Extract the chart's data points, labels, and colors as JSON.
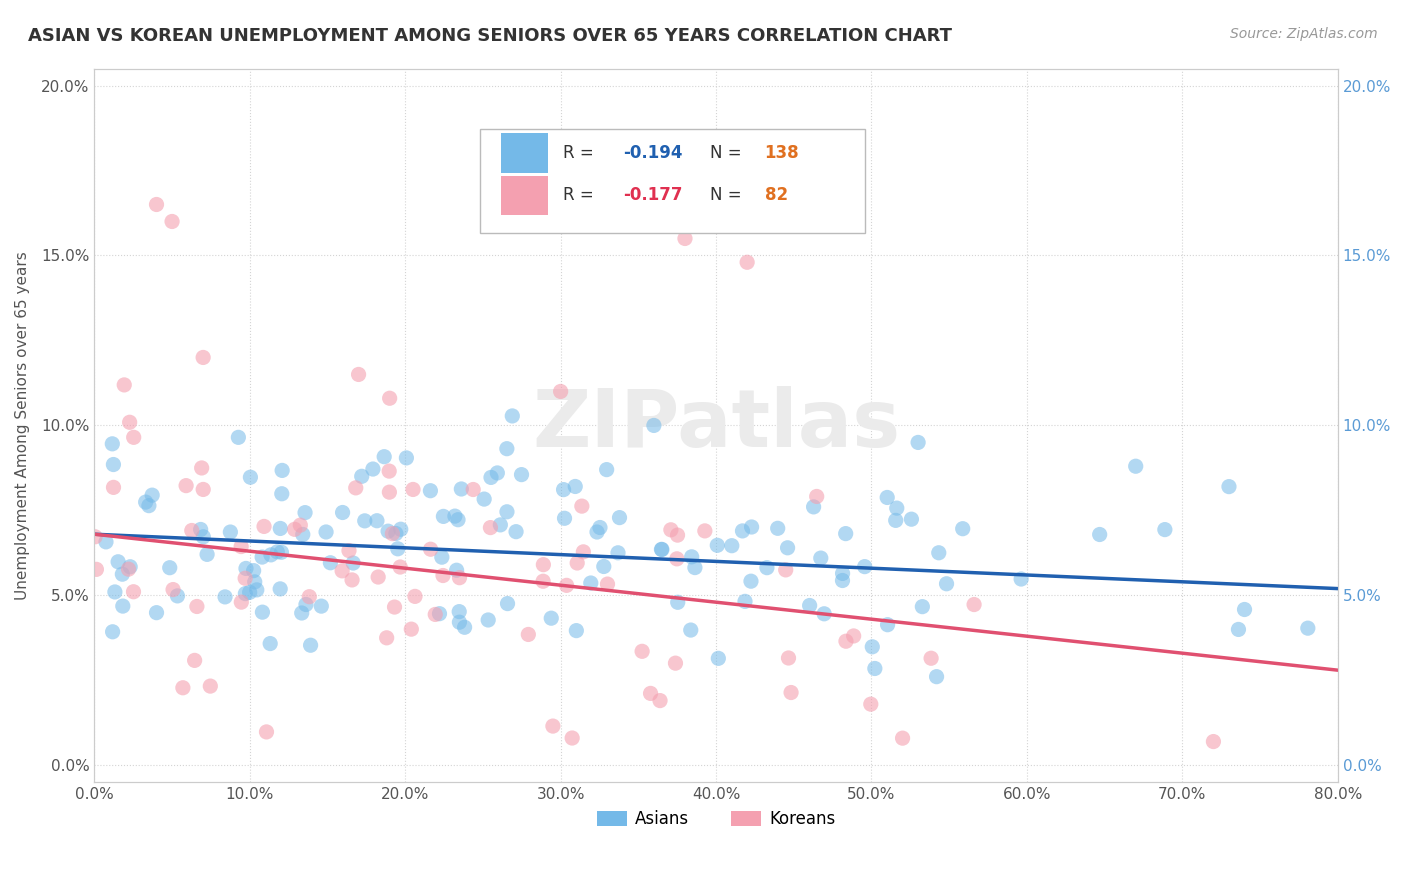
{
  "title": "ASIAN VS KOREAN UNEMPLOYMENT AMONG SENIORS OVER 65 YEARS CORRELATION CHART",
  "source": "Source: ZipAtlas.com",
  "ylabel": "Unemployment Among Seniors over 65 years",
  "xlim": [
    0.0,
    0.8
  ],
  "ylim": [
    -0.005,
    0.205
  ],
  "xticks": [
    0.0,
    0.1,
    0.2,
    0.3,
    0.4,
    0.5,
    0.6,
    0.7,
    0.8
  ],
  "yticks": [
    0.0,
    0.05,
    0.1,
    0.15,
    0.2
  ],
  "asian_color": "#74b9e8",
  "asian_edge_color": "#5a9fd4",
  "korean_color": "#f4a0b0",
  "korean_edge_color": "#e07090",
  "asian_line_color": "#2060b0",
  "korean_line_color": "#e05070",
  "asian_R": -0.194,
  "asian_N": 138,
  "korean_R": -0.177,
  "korean_N": 82,
  "watermark": "ZIPatlas",
  "background_color": "#ffffff",
  "grid_color": "#d0d0d0",
  "title_color": "#333333",
  "legend_R_color_asian": "#2060b0",
  "legend_R_color_korean": "#e03050",
  "legend_N_color_asian": "#e07020",
  "legend_N_color_korean": "#e07020",
  "asian_trend_x0": 0.0,
  "asian_trend_x1": 0.8,
  "asian_trend_y0": 0.068,
  "asian_trend_y1": 0.052,
  "korean_trend_x0": 0.0,
  "korean_trend_x1": 0.8,
  "korean_trend_y0": 0.068,
  "korean_trend_y1": 0.028
}
